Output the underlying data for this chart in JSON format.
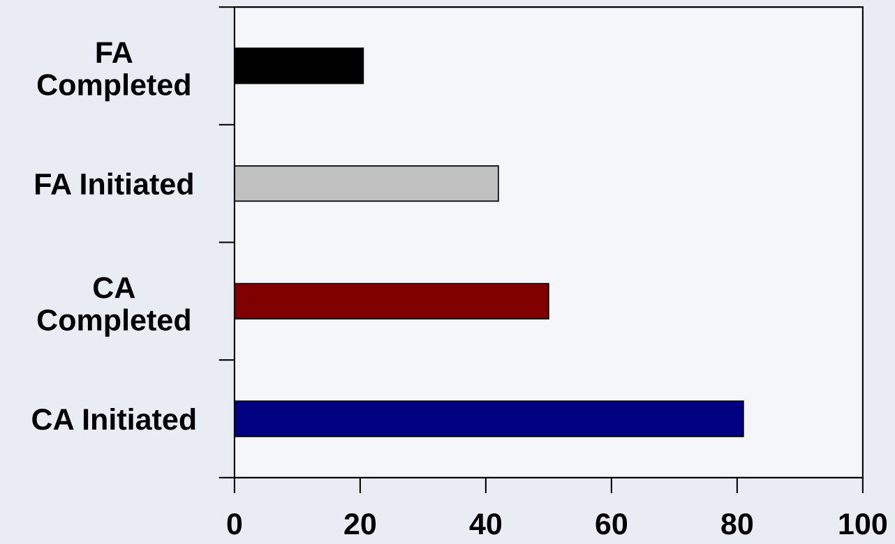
{
  "chart_data": {
    "type": "bar",
    "orientation": "horizontal",
    "categories": [
      "FA\nCompleted",
      "FA Initiated",
      "CA\nCompleted",
      "CA Initiated"
    ],
    "values": [
      20.5,
      42,
      50,
      81
    ],
    "colors": [
      "#000000",
      "#c0c0c0",
      "#800000",
      "#000080"
    ],
    "xlim": [
      0,
      100
    ],
    "xticks": [
      0,
      20,
      40,
      60,
      80,
      100
    ],
    "grid": false,
    "legend": false
  }
}
